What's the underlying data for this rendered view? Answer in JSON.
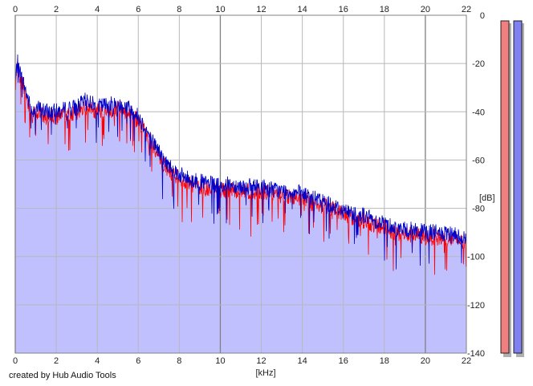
{
  "credit": "created by Hub Audio Tools",
  "chart_data": {
    "type": "area",
    "xlabel": "[kHz]",
    "ylabel": "[dB]",
    "xlim": [
      0,
      22
    ],
    "ylim": [
      -140,
      0
    ],
    "xticks": [
      0,
      2,
      4,
      6,
      8,
      10,
      12,
      14,
      16,
      18,
      20,
      22
    ],
    "yticks": [
      0,
      -20,
      -40,
      -60,
      -80,
      -100,
      -120,
      -140
    ],
    "grid": true,
    "colors": {
      "fill": "#c0c0ff",
      "left": "#ff0000",
      "right": "#0000c8",
      "grid": "#b8b8b8",
      "major_grid": "#808080"
    },
    "series": [
      {
        "channel": "left",
        "x": [
          0,
          0.1,
          0.2,
          0.4,
          0.6,
          0.8,
          1.0,
          1.5,
          2.0,
          2.5,
          3.0,
          3.5,
          4.0,
          4.5,
          5.0,
          5.5,
          6.0,
          6.3,
          6.6,
          7.0,
          7.2,
          7.6,
          8.0,
          8.5,
          9.0,
          9.5,
          10.0,
          10.5,
          11.0,
          11.5,
          12.0,
          12.5,
          13.0,
          13.5,
          14.0,
          14.5,
          15.0,
          15.5,
          16.0,
          16.5,
          17.0,
          17.5,
          18.0,
          18.5,
          19.0,
          19.5,
          20.0,
          20.5,
          21.0,
          21.5,
          22.0
        ],
        "y": [
          -30,
          -21,
          -25,
          -30,
          -37,
          -42,
          -40,
          -42,
          -42,
          -41,
          -40,
          -38,
          -40,
          -40,
          -39,
          -40,
          -44,
          -48,
          -53,
          -58,
          -62,
          -65,
          -67,
          -70,
          -71,
          -72,
          -73,
          -72,
          -73,
          -73,
          -73,
          -74,
          -75,
          -75,
          -76,
          -78,
          -79,
          -80,
          -82,
          -84,
          -85,
          -87,
          -88,
          -90,
          -91,
          -91,
          -92,
          -92,
          -93,
          -93,
          -95
        ]
      },
      {
        "channel": "right",
        "x": [
          0,
          0.1,
          0.2,
          0.4,
          0.6,
          0.8,
          1.0,
          1.5,
          2.0,
          2.5,
          3.0,
          3.5,
          4.0,
          4.5,
          5.0,
          5.5,
          6.0,
          6.3,
          6.6,
          7.0,
          7.2,
          7.6,
          8.0,
          8.5,
          9.0,
          9.5,
          10.0,
          10.5,
          11.0,
          11.5,
          12.0,
          12.5,
          13.0,
          13.5,
          14.0,
          14.5,
          15.0,
          15.5,
          16.0,
          16.5,
          17.0,
          17.5,
          18.0,
          18.5,
          19.0,
          19.5,
          20.0,
          20.5,
          21.0,
          21.5,
          22.0
        ],
        "y": [
          -28,
          -19,
          -23,
          -28,
          -34,
          -40,
          -38,
          -40,
          -40,
          -39,
          -38,
          -35,
          -38,
          -37,
          -37,
          -38,
          -42,
          -46,
          -51,
          -56,
          -60,
          -63,
          -66,
          -68,
          -69,
          -70,
          -71,
          -70,
          -71,
          -71,
          -71,
          -72,
          -73,
          -73,
          -74,
          -76,
          -77,
          -79,
          -81,
          -82,
          -83,
          -85,
          -86,
          -88,
          -89,
          -89,
          -90,
          -90,
          -91,
          -91,
          -93
        ]
      }
    ],
    "meters": [
      {
        "channel": "left",
        "color": "#f08080"
      },
      {
        "channel": "right",
        "color": "#8080f0"
      }
    ]
  }
}
